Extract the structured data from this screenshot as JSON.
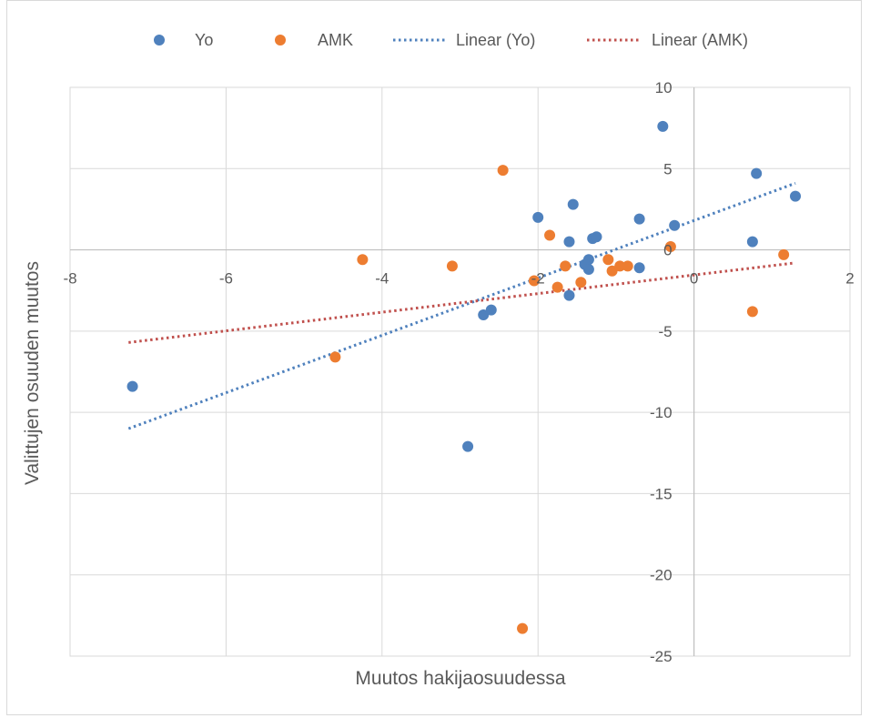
{
  "chart_data": {
    "type": "scatter",
    "xlabel": "Muutos hakijaosuudessa",
    "ylabel": "Valittujen osuuden muutos",
    "xlim": [
      -8,
      2
    ],
    "ylim": [
      -25,
      10
    ],
    "x_ticks": [
      -8,
      -6,
      -4,
      -2,
      0,
      2
    ],
    "y_ticks": [
      10,
      5,
      0,
      -5,
      -10,
      -15,
      -20,
      -25
    ],
    "grid": true,
    "legend_position": "top",
    "series": [
      {
        "name": "Yo",
        "color": "#4f81bd",
        "points": [
          [
            -7.2,
            -8.4
          ],
          [
            -2.9,
            -12.1
          ],
          [
            -2.7,
            -4.0
          ],
          [
            -2.6,
            -3.7
          ],
          [
            -2.0,
            2.0
          ],
          [
            -1.6,
            0.5
          ],
          [
            -1.6,
            -2.8
          ],
          [
            -1.55,
            2.8
          ],
          [
            -1.3,
            0.7
          ],
          [
            -1.35,
            -0.6
          ],
          [
            -1.4,
            -0.9
          ],
          [
            -1.35,
            -1.2
          ],
          [
            -1.25,
            0.8
          ],
          [
            -0.7,
            1.9
          ],
          [
            -0.7,
            -1.1
          ],
          [
            -0.4,
            7.6
          ],
          [
            -0.25,
            1.5
          ],
          [
            0.75,
            0.5
          ],
          [
            0.8,
            4.7
          ],
          [
            1.3,
            3.3
          ]
        ]
      },
      {
        "name": "AMK",
        "color": "#ed7d31",
        "points": [
          [
            -4.6,
            -6.6
          ],
          [
            -4.25,
            -0.6
          ],
          [
            -3.1,
            -1.0
          ],
          [
            -2.45,
            4.9
          ],
          [
            -2.2,
            -23.3
          ],
          [
            -2.05,
            -1.9
          ],
          [
            -1.85,
            0.9
          ],
          [
            -1.75,
            -2.3
          ],
          [
            -1.65,
            -1.0
          ],
          [
            -1.45,
            -2.0
          ],
          [
            -1.1,
            -0.6
          ],
          [
            -1.05,
            -1.3
          ],
          [
            -0.95,
            -1.0
          ],
          [
            -0.85,
            -1.0
          ],
          [
            -0.3,
            0.2
          ],
          [
            0.75,
            -3.8
          ],
          [
            1.15,
            -0.3
          ]
        ]
      }
    ],
    "trendlines": [
      {
        "name": "Linear (Yo)",
        "of_series": "Yo",
        "color": "#4f81bd",
        "style": "dotted",
        "x_range": [
          -7.25,
          1.3
        ],
        "y_range": [
          -11.0,
          4.1
        ]
      },
      {
        "name": "Linear (AMK)",
        "of_series": "AMK",
        "color": "#c0504d",
        "style": "dotted",
        "x_range": [
          -7.25,
          1.3
        ],
        "y_range": [
          -5.7,
          -0.8
        ]
      }
    ]
  }
}
